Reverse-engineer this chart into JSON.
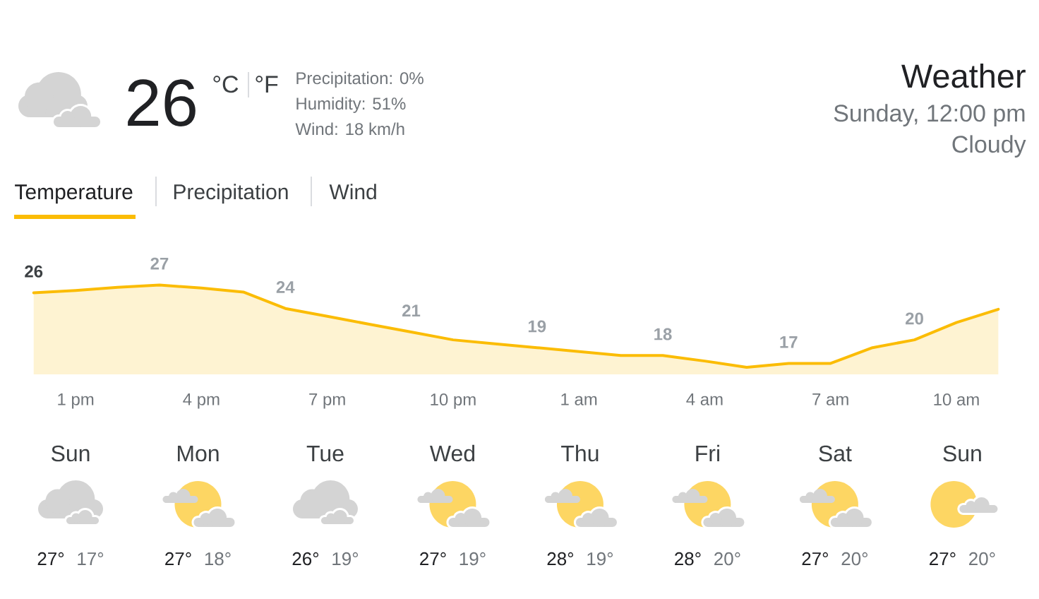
{
  "chart_data": [
    {
      "type": "other",
      "title": "Weather",
      "subtitle": "Sunday, 12:00 pm",
      "annotations": [
        "26",
        "°C",
        "°F",
        "Precipitation: 0%",
        "Humidity: 51%",
        "Wind: 18 km/h",
        "Cloudy",
        "Temperature",
        "Precipitation",
        "Wind"
      ]
    },
    {
      "type": "area",
      "color": "#fbbc04",
      "categories": [
        null,
        "1 pm",
        null,
        null,
        "4 pm",
        null,
        null,
        "7 pm",
        null,
        null,
        "10 pm",
        null,
        null,
        "1 am",
        null,
        null,
        "4 am",
        null,
        null,
        "7 am",
        null,
        null,
        "10 am",
        null
      ],
      "values": [
        26,
        26.3,
        26.7,
        27,
        26.6,
        26.1,
        24,
        23,
        22,
        21,
        20,
        19.5,
        19,
        18.5,
        18,
        18,
        17.3,
        16.5,
        17,
        17,
        19,
        20,
        22.2,
        23.9
      ],
      "value_labels": [
        "26",
        null,
        null,
        "27",
        null,
        null,
        "24",
        null,
        null,
        "21",
        null,
        null,
        "19",
        null,
        null,
        "18",
        null,
        null,
        "17",
        null,
        null,
        "20",
        null,
        null
      ],
      "tick_labels": "x"
    },
    {
      "type": "other",
      "categories": [
        "Sun",
        "Mon",
        "Tue",
        "Wed",
        "Thu",
        "Fri",
        "Sat",
        "Sun"
      ],
      "annotations": [
        "27°",
        "17°",
        "27°",
        "18°",
        "26°",
        "19°",
        "27°",
        "19°",
        "28°",
        "19°",
        "28°",
        "20°",
        "27°",
        "20°",
        "27°",
        "20°"
      ]
    }
  ]
}
